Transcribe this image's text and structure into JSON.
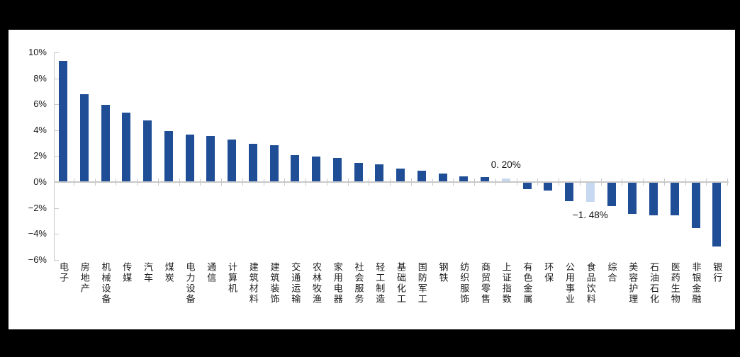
{
  "page": {
    "background": "#000000",
    "panel_background": "#FFFFFF"
  },
  "chart_data": {
    "type": "bar",
    "title": "",
    "xlabel": "",
    "ylabel": "",
    "categories": [
      "电子",
      "房地产",
      "机械设备",
      "传媒",
      "汽车",
      "煤炭",
      "电力设备",
      "通信",
      "计算机",
      "建筑材料",
      "建筑装饰",
      "交通运输",
      "农林牧渔",
      "家用电器",
      "社会服务",
      "轻工制造",
      "基础化工",
      "国防军工",
      "钢铁",
      "纺织服饰",
      "商贸零售",
      "上证指数",
      "有色金属",
      "环保",
      "公用事业",
      "食品饮料",
      "综合",
      "美容护理",
      "石油石化",
      "医药生物",
      "非银金融",
      "银行"
    ],
    "values": [
      9.3,
      6.7,
      5.9,
      5.3,
      4.7,
      3.9,
      3.6,
      3.5,
      3.2,
      2.9,
      2.8,
      2.0,
      1.9,
      1.8,
      1.4,
      1.3,
      1.0,
      0.8,
      0.6,
      0.4,
      0.35,
      0.2,
      -0.5,
      -0.6,
      -1.4,
      -1.48,
      -1.8,
      -2.4,
      -2.5,
      -2.5,
      -3.5,
      -4.9
    ],
    "ylim": [
      -6,
      10
    ],
    "ytick_step": 2,
    "yticks": [
      {
        "label": "10%",
        "value": 10
      },
      {
        "label": "8%",
        "value": 8
      },
      {
        "label": "6%",
        "value": 6
      },
      {
        "label": "4%",
        "value": 4
      },
      {
        "label": "2%",
        "value": 2
      },
      {
        "label": "0%",
        "value": 0
      },
      {
        "label": "−2%",
        "value": -2
      },
      {
        "label": "−4%",
        "value": -4
      },
      {
        "label": "−6%",
        "value": -6
      }
    ],
    "highlight_indices": [
      21,
      25
    ],
    "annotations": [
      {
        "text": "0. 20%",
        "category": "上证指数",
        "category_index": 21,
        "position": "above"
      },
      {
        "text": "−1. 48%",
        "category": "食品饮料",
        "category_index": 25,
        "position": "below"
      }
    ],
    "colors": {
      "bar": "#1F4E96",
      "highlight_bar": "#C7D9F0",
      "axis": "#C8C8C8",
      "text": "#1A1A1A"
    },
    "grid": false,
    "legend": false
  }
}
